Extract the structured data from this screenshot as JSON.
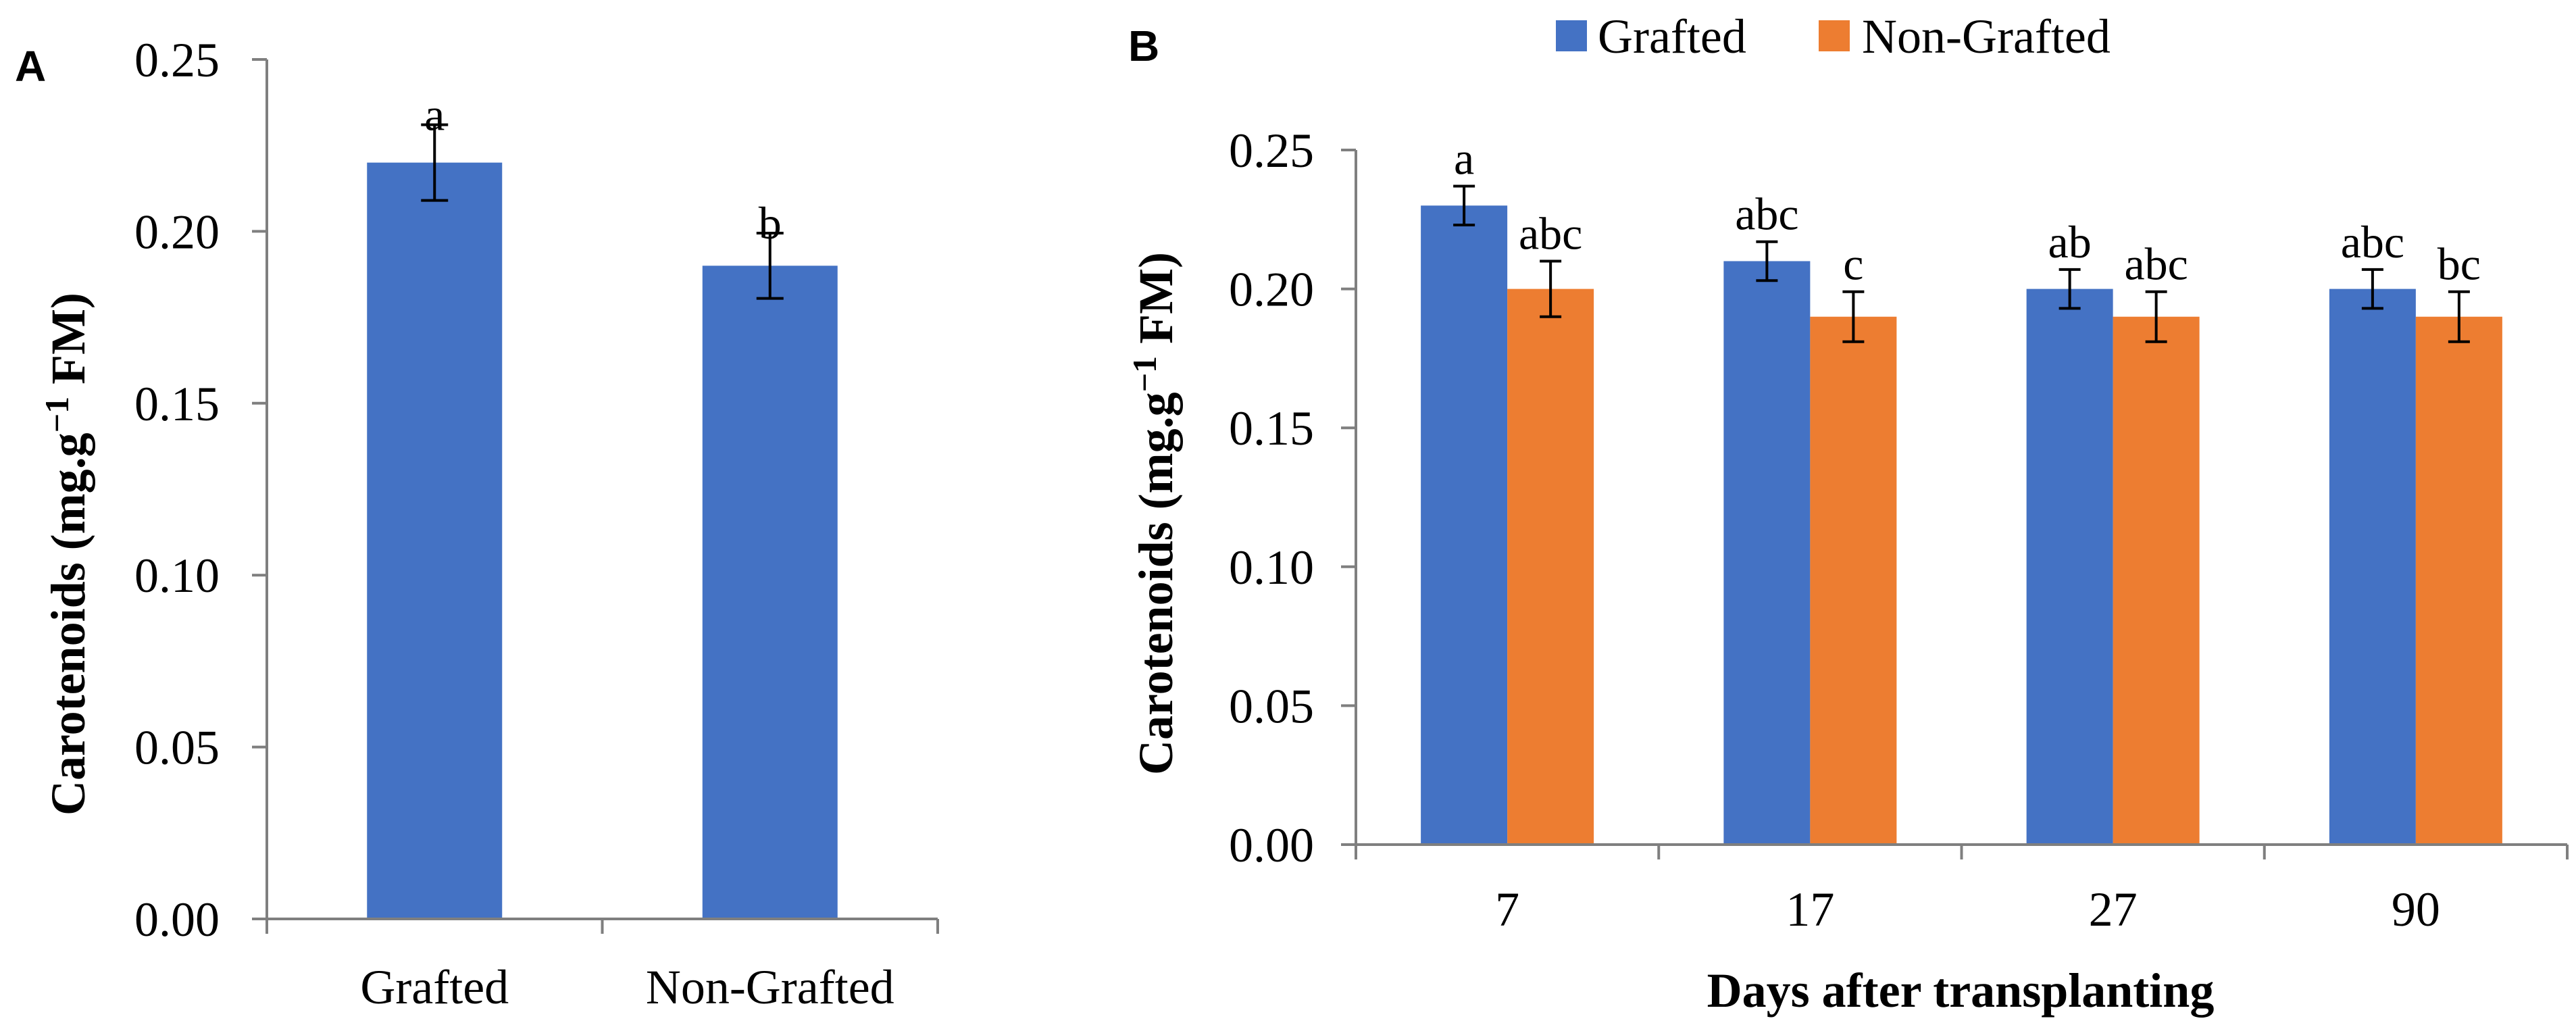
{
  "chart_data": [
    {
      "panel": "A",
      "type": "bar",
      "categories": [
        "Grafted",
        "Non-Grafted"
      ],
      "values": [
        0.22,
        0.19
      ],
      "errors": [
        0.011,
        0.0095
      ],
      "significance": [
        "a",
        "b"
      ],
      "colors": [
        "#4472C4",
        "#4472C4"
      ],
      "ylabel_main": "Carotenoids (mg.g",
      "ylabel_sup": "−1",
      "ylabel_end": " FM)",
      "xlabel": "",
      "ylim": [
        0,
        0.25
      ],
      "yticks": [
        "0.00",
        "0.05",
        "0.10",
        "0.15",
        "0.20",
        "0.25"
      ]
    },
    {
      "panel": "B",
      "type": "bar",
      "categories": [
        "7",
        "17",
        "27",
        "90"
      ],
      "series": [
        {
          "name": "Grafted",
          "color": "#4472C4",
          "values": [
            0.23,
            0.21,
            0.2,
            0.2
          ],
          "errors": [
            0.007,
            0.007,
            0.007,
            0.007
          ],
          "significance": [
            "a",
            "abc",
            "ab",
            "abc"
          ]
        },
        {
          "name": "Non-Grafted",
          "color": "#ED7D31",
          "values": [
            0.2,
            0.19,
            0.19,
            0.19
          ],
          "errors": [
            0.01,
            0.009,
            0.009,
            0.009
          ],
          "significance": [
            "abc",
            "c",
            "abc",
            "bc"
          ]
        }
      ],
      "ylabel_main": "Carotenoids (mg.g",
      "ylabel_sup": "−1",
      "ylabel_end": " FM)",
      "xlabel": "Days after transplanting",
      "legend_position": "top",
      "ylim": [
        0,
        0.25
      ],
      "yticks": [
        "0.00",
        "0.05",
        "0.10",
        "0.15",
        "0.20",
        "0.25"
      ]
    }
  ]
}
